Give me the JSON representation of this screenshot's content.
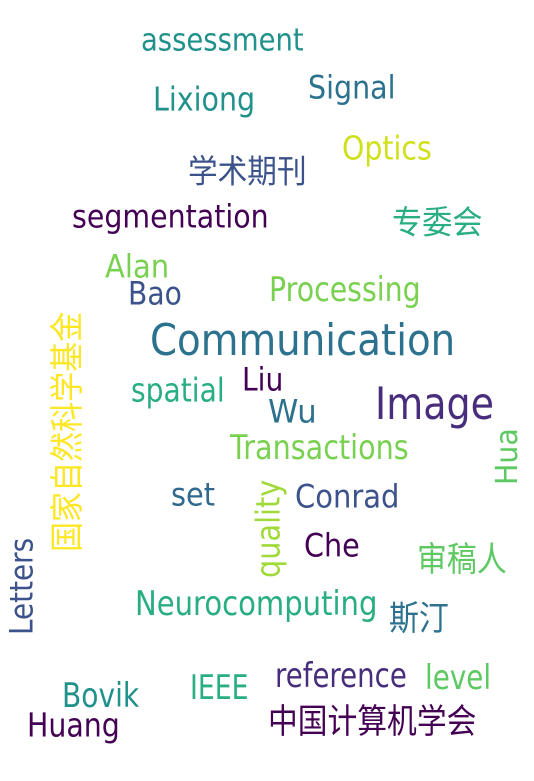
{
  "word_cloud": {
    "words": [
      {
        "text": "assessment",
        "color": "#21918c"
      },
      {
        "text": "Signal",
        "color": "#2c728e"
      },
      {
        "text": "Lixiong",
        "color": "#21918c"
      },
      {
        "text": "Optics",
        "color": "#d0e11c"
      },
      {
        "text": "学术期刊",
        "color": "#3b528b"
      },
      {
        "text": "segmentation",
        "color": "#440154"
      },
      {
        "text": "专委会",
        "color": "#28ae80"
      },
      {
        "text": "Alan",
        "color": "#7ad151"
      },
      {
        "text": "Bao",
        "color": "#3b528b"
      },
      {
        "text": "Processing",
        "color": "#7ad151"
      },
      {
        "text": "国家自然科学基金",
        "color": "#fde725"
      },
      {
        "text": "Communication",
        "color": "#2c728e"
      },
      {
        "text": "spatial",
        "color": "#28ae80"
      },
      {
        "text": "Liu",
        "color": "#440154"
      },
      {
        "text": "Image",
        "color": "#472d7b"
      },
      {
        "text": "Wu",
        "color": "#2c728e"
      },
      {
        "text": "Transactions",
        "color": "#7ad151"
      },
      {
        "text": "Hua",
        "color": "#5ec962"
      },
      {
        "text": "set",
        "color": "#31688e"
      },
      {
        "text": "quality",
        "color": "#a0da39"
      },
      {
        "text": "Conrad",
        "color": "#3b528b"
      },
      {
        "text": "Che",
        "color": "#440154"
      },
      {
        "text": "审稿人",
        "color": "#5ec962"
      },
      {
        "text": "Letters",
        "color": "#3b528b"
      },
      {
        "text": "Neurocomputing",
        "color": "#28ae80"
      },
      {
        "text": "斯汀",
        "color": "#2c728e"
      },
      {
        "text": "reference",
        "color": "#472d7b"
      },
      {
        "text": "level",
        "color": "#5ec962"
      },
      {
        "text": "IEEE",
        "color": "#28ae80"
      },
      {
        "text": "Bovik",
        "color": "#21918c"
      },
      {
        "text": "中国计算机学会",
        "color": "#440154"
      },
      {
        "text": "Huang",
        "color": "#440154"
      }
    ]
  }
}
